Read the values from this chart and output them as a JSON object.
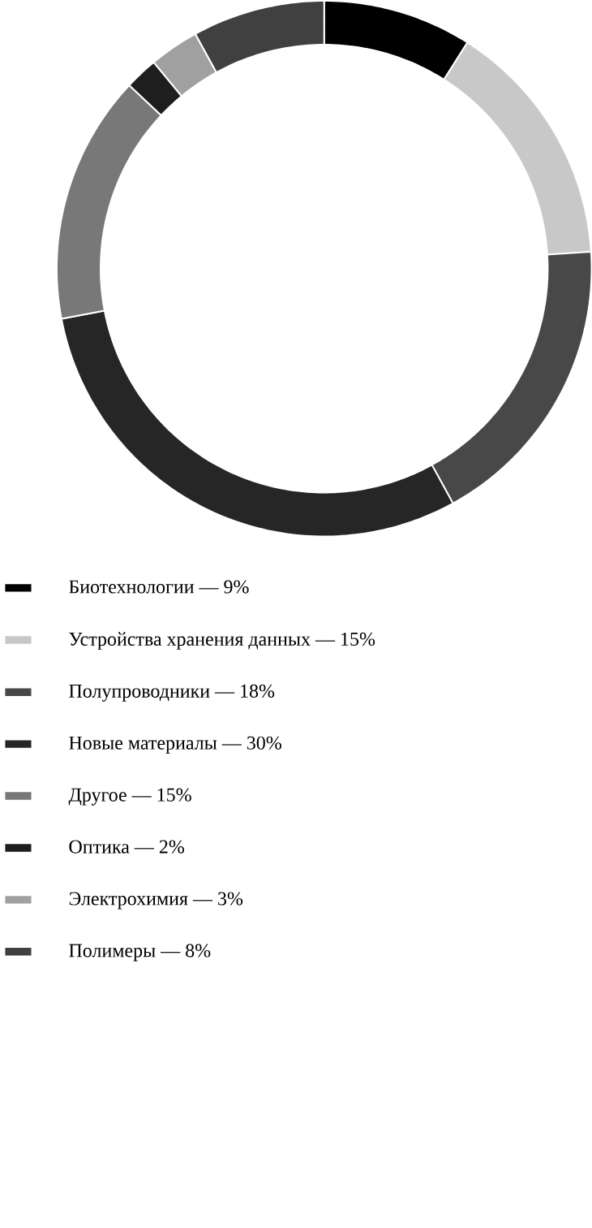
{
  "chart_data": {
    "type": "donut",
    "categories": [
      "Биотехнологии — 9%",
      "Устройства хранения данных — 15%",
      "Полупроводники — 18%",
      "Новые материалы — 30%",
      "Другое — 15%",
      "Оптика — 2%",
      "Электрохимия — 3%",
      "Полимеры — 8%"
    ],
    "values": [
      9,
      15,
      18,
      30,
      15,
      2,
      3,
      8
    ],
    "colors": [
      "#000000",
      "#c8c8c8",
      "#484848",
      "#262626",
      "#787878",
      "#1e1e1e",
      "#a0a0a0",
      "#404040"
    ],
    "legend": "bottom"
  }
}
